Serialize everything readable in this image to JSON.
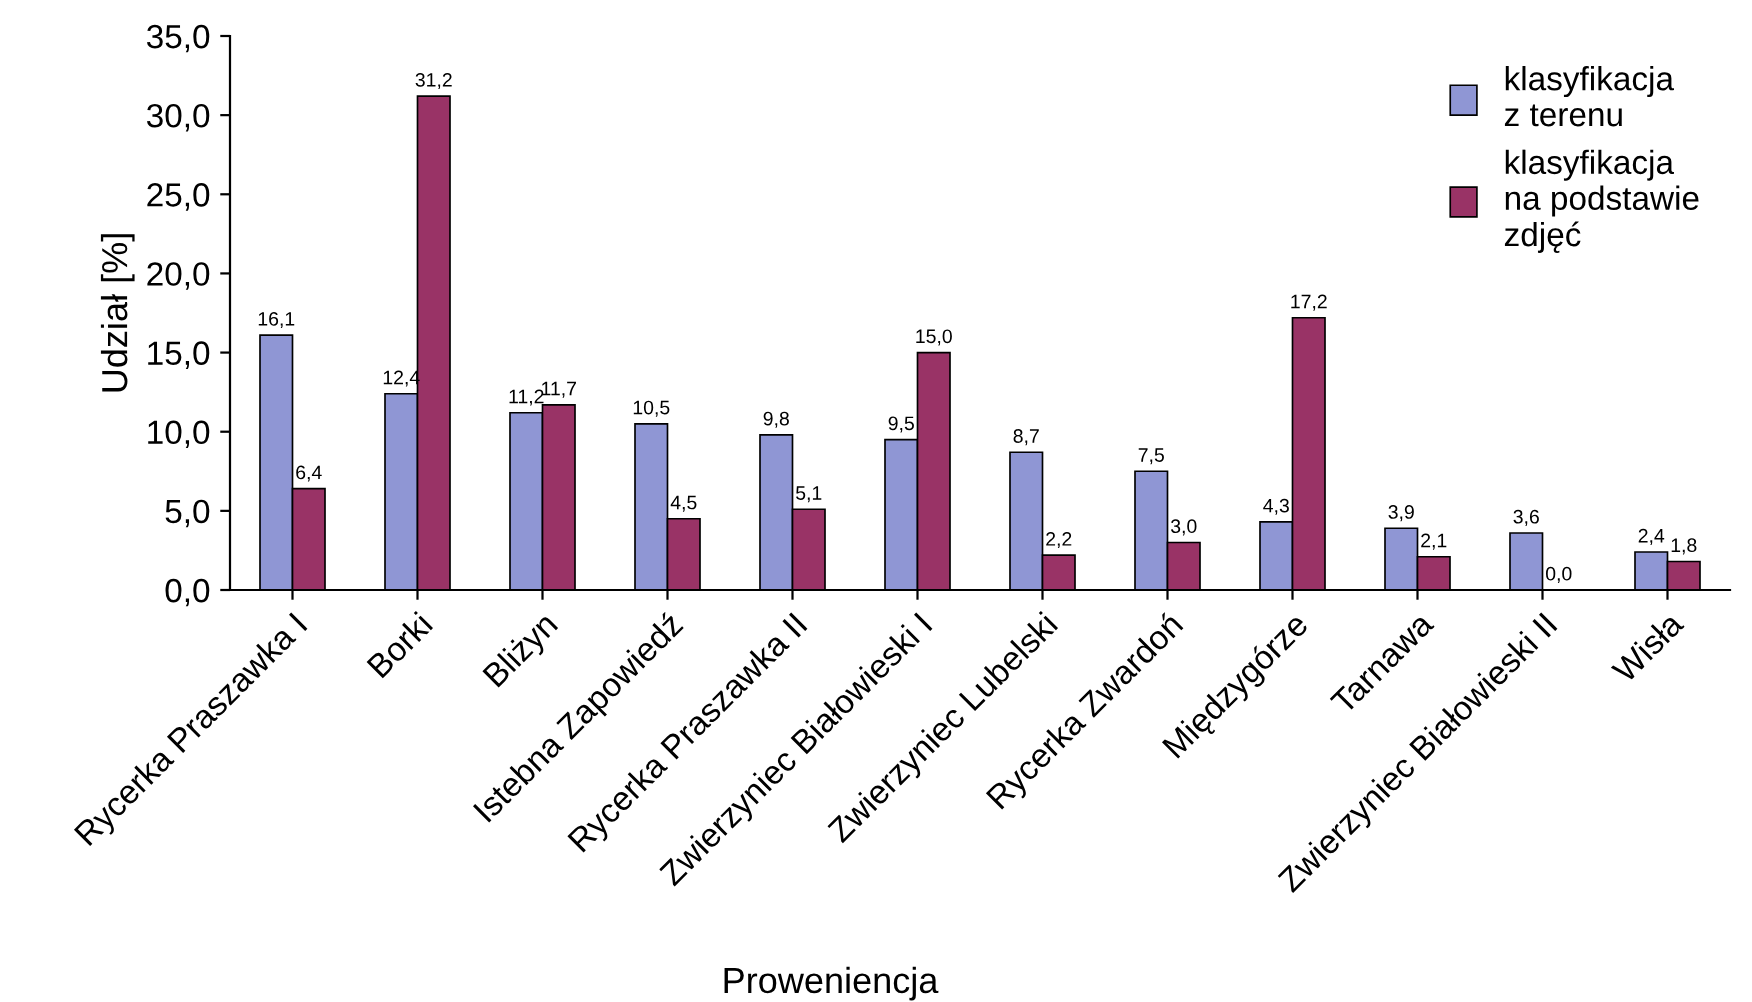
{
  "chart_data": {
    "type": "bar",
    "xlabel": "Proweniencja",
    "ylabel": "Udział [%]",
    "categories": [
      "Rycerka Praszawka I",
      "Borki",
      "Bliżyn",
      "Istebna Zapowiedź",
      "Rycerka Praszawka II",
      "Zwierzyniec Białowieski I",
      "Zwierzyniec Lubelski",
      "Rycerka Zwardoń",
      "Międzygórze",
      "Tarnawa",
      "Zwierzyniec Białowieski II",
      "Wisła"
    ],
    "series": [
      {
        "name": "klasyfikacja\nz terenu",
        "color": "#8f96d4",
        "values": [
          16.1,
          12.4,
          11.2,
          10.5,
          9.8,
          9.5,
          8.7,
          7.5,
          4.3,
          3.9,
          3.6,
          2.4
        ],
        "value_labels": [
          "16,1",
          "12,4",
          "11,2",
          "10,5",
          "9,8",
          "9,5",
          "8,7",
          "7,5",
          "4,3",
          "3,9",
          "3,6",
          "2,4"
        ]
      },
      {
        "name": "klasyfikacja\nna podstawie\nzdjęć",
        "color": "#993366",
        "values": [
          6.4,
          31.2,
          11.7,
          4.5,
          5.1,
          15.0,
          2.2,
          3.0,
          17.2,
          2.1,
          0.0,
          1.8
        ],
        "value_labels": [
          "6,4",
          "31,2",
          "11,7",
          "4,5",
          "5,1",
          "15,0",
          "2,2",
          "3,0",
          "17,2",
          "2,1",
          "0,0",
          "1,8"
        ]
      }
    ],
    "ylim": [
      0,
      35
    ],
    "yticks": [
      {
        "value": 0,
        "label": "0,0"
      },
      {
        "value": 5,
        "label": "5,0"
      },
      {
        "value": 10,
        "label": "10,0"
      },
      {
        "value": 15,
        "label": "15,0"
      },
      {
        "value": 20,
        "label": "20,0"
      },
      {
        "value": 25,
        "label": "25,0"
      },
      {
        "value": 30,
        "label": "30,0"
      },
      {
        "value": 35,
        "label": "35,0"
      }
    ],
    "grid": false,
    "legend": "top right"
  }
}
